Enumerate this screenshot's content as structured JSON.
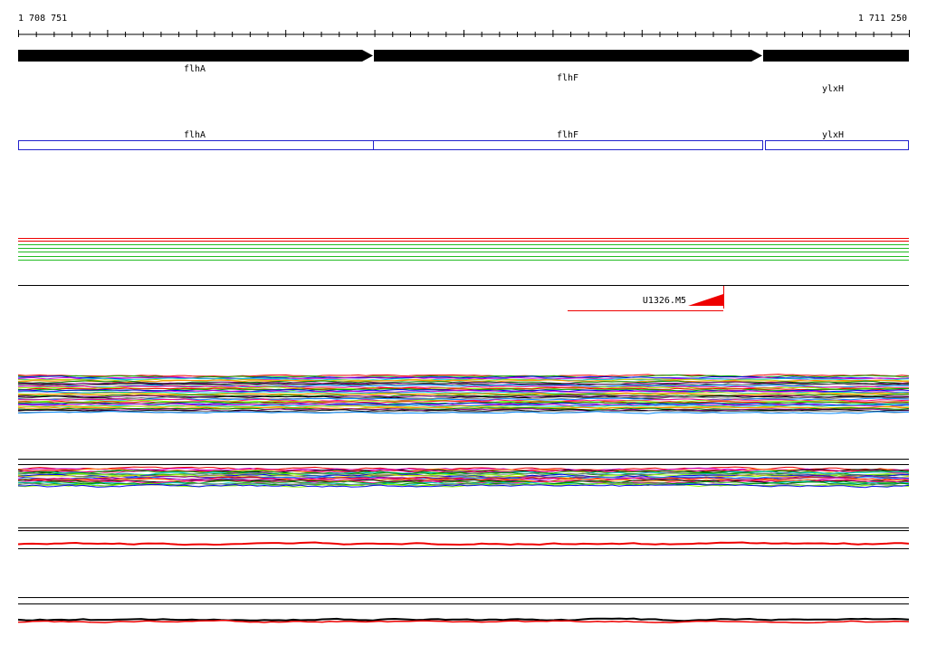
{
  "ruler": {
    "start": "1 708 751",
    "end": "1 711 250"
  },
  "genes": [
    {
      "label": "flhA"
    },
    {
      "label": "flhF"
    },
    {
      "label": "ylxH"
    }
  ],
  "features": [
    {
      "label": "flhA"
    },
    {
      "label": "flhF"
    },
    {
      "label": "ylxH"
    }
  ],
  "track": {
    "label": "U1326.M5"
  }
}
